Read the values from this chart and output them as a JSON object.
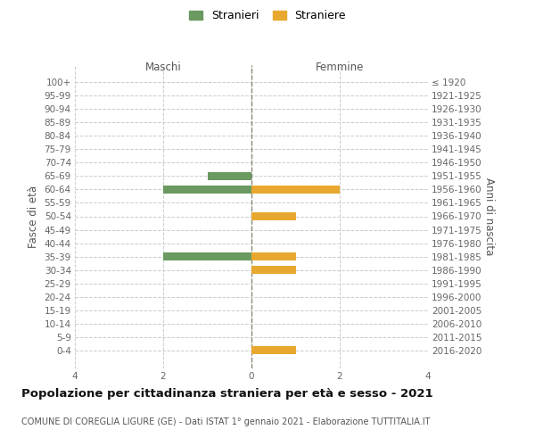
{
  "age_groups": [
    "100+",
    "95-99",
    "90-94",
    "85-89",
    "80-84",
    "75-79",
    "70-74",
    "65-69",
    "60-64",
    "55-59",
    "50-54",
    "45-49",
    "40-44",
    "35-39",
    "30-34",
    "25-29",
    "20-24",
    "15-19",
    "10-14",
    "5-9",
    "0-4"
  ],
  "birth_years": [
    "≤ 1920",
    "1921-1925",
    "1926-1930",
    "1931-1935",
    "1936-1940",
    "1941-1945",
    "1946-1950",
    "1951-1955",
    "1956-1960",
    "1961-1965",
    "1966-1970",
    "1971-1975",
    "1976-1980",
    "1981-1985",
    "1986-1990",
    "1991-1995",
    "1996-2000",
    "2001-2005",
    "2006-2010",
    "2011-2015",
    "2016-2020"
  ],
  "maschi_values": [
    0,
    0,
    0,
    0,
    0,
    0,
    0,
    1,
    2,
    0,
    0,
    0,
    0,
    2,
    0,
    0,
    0,
    0,
    0,
    0,
    0
  ],
  "femmine_values": [
    0,
    0,
    0,
    0,
    0,
    0,
    0,
    0,
    2,
    0,
    1,
    0,
    0,
    1,
    1,
    0,
    0,
    0,
    0,
    0,
    1
  ],
  "maschi_color": "#6a9a5f",
  "femmine_color": "#e8a830",
  "xlim": 4,
  "xlabel_left": "Maschi",
  "xlabel_right": "Femmine",
  "ylabel_left": "Fasce di età",
  "ylabel_right": "Anni di nascita",
  "title": "Popolazione per cittadinanza straniera per età e sesso - 2021",
  "subtitle": "COMUNE DI COREGLIA LIGURE (GE) - Dati ISTAT 1° gennaio 2021 - Elaborazione TUTTITALIA.IT",
  "legend_stranieri": "Stranieri",
  "legend_straniere": "Straniere",
  "background_color": "#ffffff",
  "grid_color": "#cccccc",
  "zero_line_color": "#888877",
  "tick_fontsize": 7.5,
  "header_fontsize": 8.5,
  "title_fontsize": 9.5,
  "subtitle_fontsize": 7,
  "ylabel_fontsize": 8.5
}
